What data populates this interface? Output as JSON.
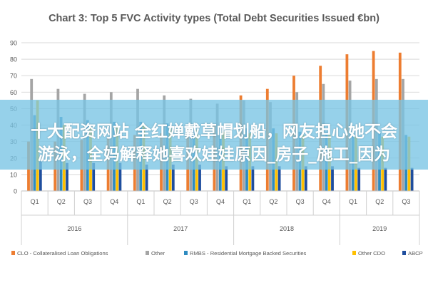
{
  "chart_data": {
    "type": "bar",
    "title": "Chart 3: Top 5 FVC Activity types (Total Debt Securities Issued €bn)",
    "ylim": [
      0,
      90
    ],
    "yticks": [
      0,
      10,
      20,
      30,
      40,
      50,
      60,
      70,
      80,
      90
    ],
    "grid": true,
    "legend_position": "bottom",
    "categories": [
      "Q1",
      "Q2",
      "Q3",
      "Q4",
      "Q1",
      "Q2",
      "Q3",
      "Q4",
      "Q1",
      "Q2",
      "Q3",
      "Q4",
      "Q1",
      "Q2",
      "Q3"
    ],
    "groups": [
      {
        "label": "2016",
        "count": 4
      },
      {
        "label": "2017",
        "count": 4
      },
      {
        "label": "2018",
        "count": 4
      },
      {
        "label": "2019",
        "count": 3
      }
    ],
    "series": [
      {
        "name": "CLO - Collateralised Loan Obligations",
        "color": "#ED7D31",
        "values": [
          30,
          30,
          31,
          32,
          34,
          35,
          38,
          40,
          58,
          62,
          70,
          76,
          83,
          85,
          84
        ]
      },
      {
        "name": "Other",
        "color": "#A5A5A5",
        "values": [
          68,
          62,
          59,
          60,
          62,
          58,
          56,
          53,
          55,
          54,
          60,
          65,
          67,
          68,
          68
        ]
      },
      {
        "name": "RMBS - Residential Mortgage Backed Securities",
        "color": "#2E8BC0",
        "values": [
          46,
          45,
          43,
          42,
          42,
          41,
          40,
          39,
          38,
          38,
          36,
          36,
          35,
          35,
          34
        ]
      },
      {
        "name": "Other CDO",
        "color": "#FFC000",
        "values": [
          55,
          40,
          39,
          39,
          40,
          38,
          37,
          36,
          35,
          35,
          34,
          34,
          33,
          33,
          33
        ]
      },
      {
        "name": "ABCP",
        "color": "#1F4E9E",
        "values": [
          18,
          17,
          17,
          17,
          16,
          16,
          16,
          15,
          15,
          15,
          15,
          15,
          14,
          14,
          14
        ]
      }
    ]
  },
  "overlay": {
    "line1": "十大配资网站 全红婵戴草帽划船，网友担心她不会",
    "line2": "游泳，全妈解释她喜欢娃娃原因_房子_施工_因为"
  }
}
